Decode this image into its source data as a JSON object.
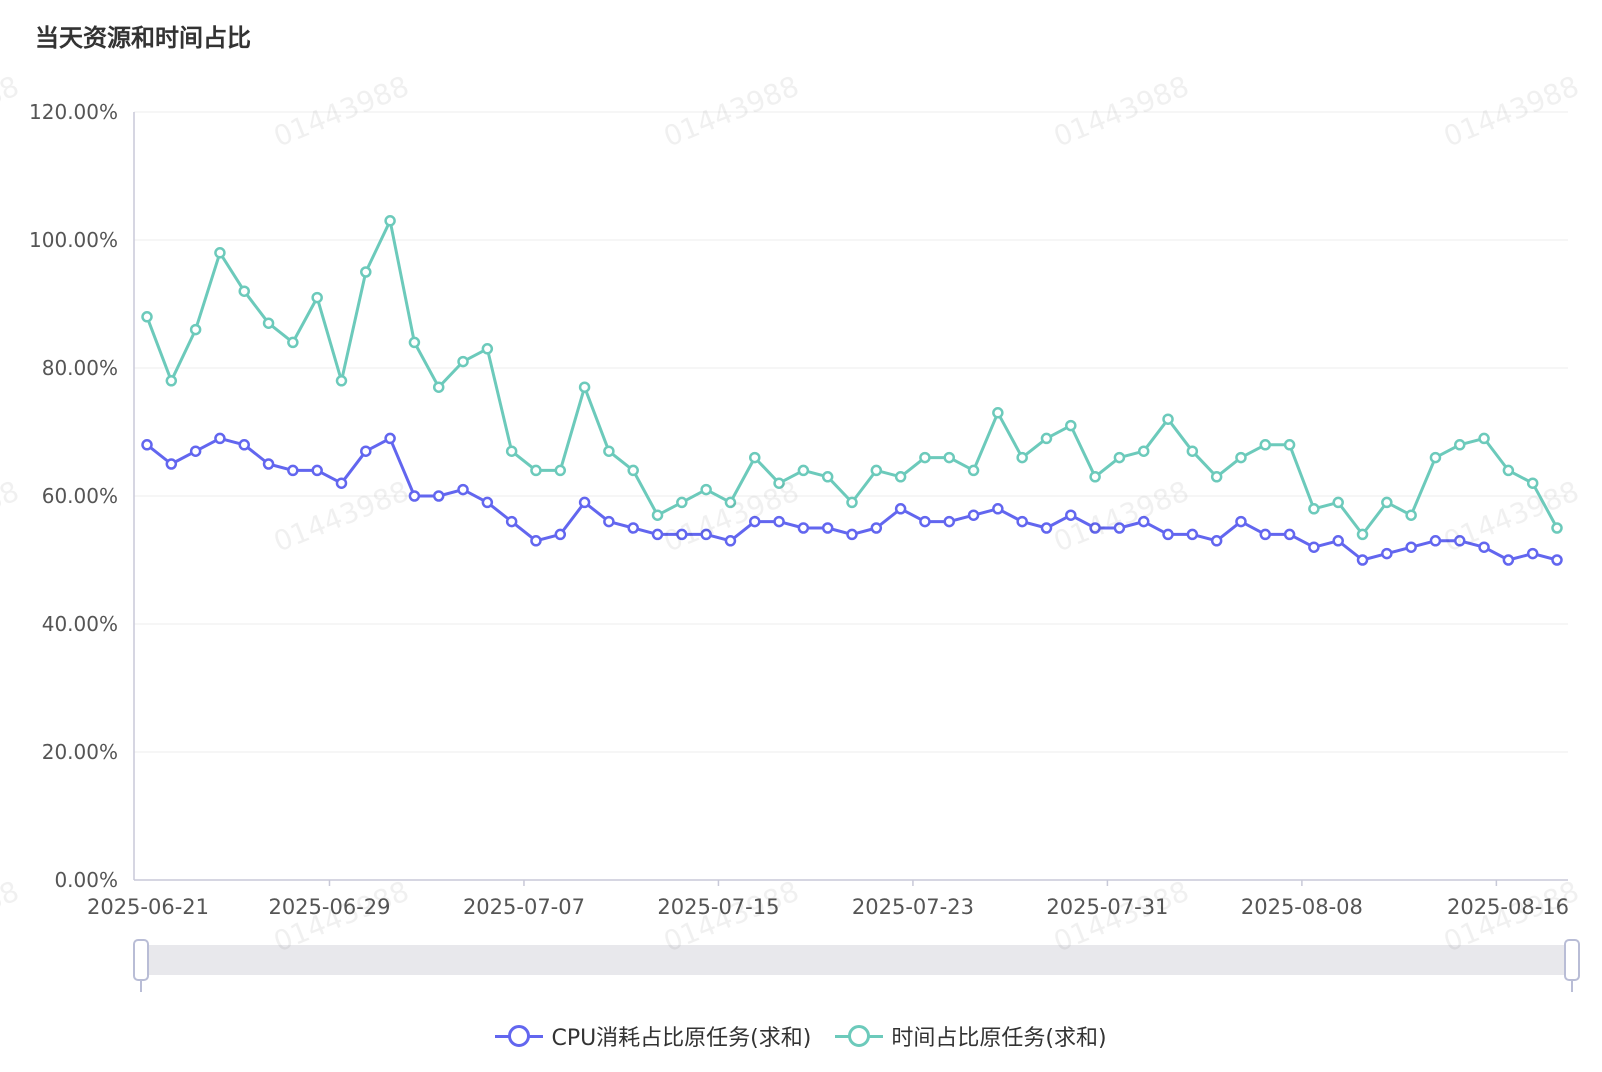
{
  "title": "当天资源和时间占比",
  "watermark": "01443988",
  "legend": {
    "cpu": "CPU消耗占比原任务(求和)",
    "time": "时间占比原任务(求和)"
  },
  "colors": {
    "cpu": "#6266ef",
    "time": "#6ccabb",
    "grid": "#eeeeee",
    "axis": "#c8c9d8",
    "slider_bg": "#e8e8ec"
  },
  "chart_data": {
    "type": "line",
    "title": "当天资源和时间占比",
    "xlabel": "",
    "ylabel": "",
    "ylim": [
      0,
      120
    ],
    "y_ticks": [
      "0.00%",
      "20.00%",
      "40.00%",
      "60.00%",
      "80.00%",
      "100.00%",
      "120.00%"
    ],
    "x_tick_labels": [
      "2025-06-21",
      "2025-06-29",
      "2025-07-07",
      "2025-07-15",
      "2025-07-23",
      "2025-07-31",
      "2025-08-08",
      "2025-08-16"
    ],
    "x_start": "2025-06-21",
    "grid": true,
    "legend_position": "bottom",
    "series": [
      {
        "name": "CPU消耗占比原任务(求和)",
        "values": [
          68,
          65,
          67,
          69,
          68,
          65,
          64,
          64,
          62,
          67,
          69,
          60,
          60,
          61,
          59,
          56,
          53,
          54,
          59,
          56,
          55,
          54,
          54,
          54,
          53,
          56,
          56,
          55,
          55,
          54,
          55,
          58,
          56,
          56,
          57,
          58,
          56,
          55,
          57,
          55,
          55,
          56,
          54,
          54,
          53,
          56,
          54,
          54,
          52,
          53,
          50,
          51,
          52,
          53,
          53,
          52,
          50,
          51,
          50
        ]
      },
      {
        "name": "时间占比原任务(求和)",
        "values": [
          88,
          78,
          86,
          98,
          92,
          87,
          84,
          91,
          78,
          95,
          103,
          84,
          77,
          81,
          83,
          67,
          64,
          64,
          77,
          67,
          64,
          57,
          59,
          61,
          59,
          66,
          62,
          64,
          63,
          59,
          64,
          63,
          66,
          66,
          64,
          73,
          66,
          69,
          71,
          63,
          66,
          67,
          72,
          67,
          63,
          66,
          68,
          68,
          58,
          59,
          54,
          59,
          57,
          66,
          68,
          69,
          64,
          62,
          55
        ]
      }
    ]
  }
}
